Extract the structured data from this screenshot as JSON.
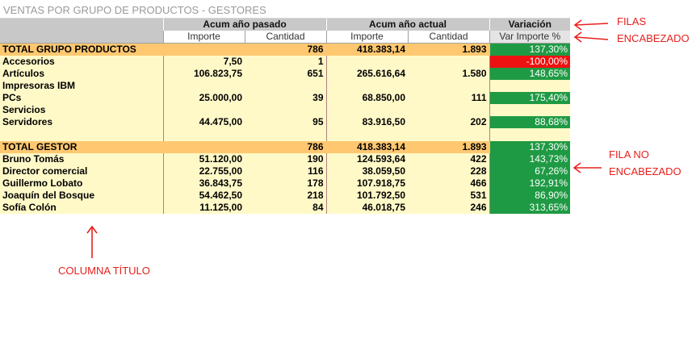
{
  "report": {
    "title": "VENTAS POR GRUPO DE PRODUCTOS - GESTORES"
  },
  "header": {
    "group_labels": [
      "Acum año pasado",
      "Acum año actual",
      "Variación"
    ],
    "sub_labels": [
      "Importe",
      "Cantidad",
      "Importe",
      "Cantidad",
      "Var Importe %"
    ]
  },
  "products": {
    "total": {
      "label": "TOTAL GRUPO PRODUCTOS",
      "prev_importe": "",
      "prev_cantidad": "786",
      "cur_importe": "418.383,14",
      "cur_cantidad": "1.893",
      "var": "137,30%"
    },
    "rows": [
      {
        "label": "Accesorios",
        "prev_importe": "7,50",
        "prev_cantidad": "1",
        "cur_importe": "",
        "cur_cantidad": "",
        "var": "-100,00%"
      },
      {
        "label": "Artículos",
        "prev_importe": "106.823,75",
        "prev_cantidad": "651",
        "cur_importe": "265.616,64",
        "cur_cantidad": "1.580",
        "var": "148,65%"
      },
      {
        "label": "Impresoras IBM",
        "prev_importe": "",
        "prev_cantidad": "",
        "cur_importe": "",
        "cur_cantidad": "",
        "var": ""
      },
      {
        "label": "PCs",
        "prev_importe": "25.000,00",
        "prev_cantidad": "39",
        "cur_importe": "68.850,00",
        "cur_cantidad": "111",
        "var": "175,40%"
      },
      {
        "label": "Servicios",
        "prev_importe": "",
        "prev_cantidad": "",
        "cur_importe": "",
        "cur_cantidad": "",
        "var": ""
      },
      {
        "label": "Servidores",
        "prev_importe": "44.475,00",
        "prev_cantidad": "95",
        "cur_importe": "83.916,50",
        "cur_cantidad": "202",
        "var": "88,68%"
      }
    ]
  },
  "gestores": {
    "total": {
      "label": "TOTAL GESTOR",
      "prev_importe": "",
      "prev_cantidad": "786",
      "cur_importe": "418.383,14",
      "cur_cantidad": "1.893",
      "var": "137,30%"
    },
    "rows": [
      {
        "label": "Bruno Tomás",
        "prev_importe": "51.120,00",
        "prev_cantidad": "190",
        "cur_importe": "124.593,64",
        "cur_cantidad": "422",
        "var": "143,73%"
      },
      {
        "label": "Director comercial",
        "prev_importe": "22.755,00",
        "prev_cantidad": "116",
        "cur_importe": "38.059,50",
        "cur_cantidad": "228",
        "var": "67,26%"
      },
      {
        "label": "Guillermo Lobato",
        "prev_importe": "36.843,75",
        "prev_cantidad": "178",
        "cur_importe": "107.918,75",
        "cur_cantidad": "466",
        "var": "192,91%"
      },
      {
        "label": "Joaquín del Bosque",
        "prev_importe": "54.462,50",
        "prev_cantidad": "218",
        "cur_importe": "101.792,50",
        "cur_cantidad": "531",
        "var": "86,90%"
      },
      {
        "label": "Sofía Colón",
        "prev_importe": "11.125,00",
        "prev_cantidad": "84",
        "cur_importe": "46.018,75",
        "cur_cantidad": "246",
        "var": "313,65%"
      }
    ]
  },
  "annotations": {
    "filas_line1": "FILAS",
    "filas_line2": "ENCABEZADO",
    "fila_no_line1": "FILA NO",
    "fila_no_line2": "ENCABEZADO",
    "columna_titulo": "COLUMNA TÍTULO"
  },
  "colors": {
    "positive": "#1f9a44",
    "negative": "#ee1111",
    "total_row": "#ffc870",
    "data_row": "#fff9c8",
    "header": "#c8c8c8",
    "annotation": "#e8201c"
  }
}
